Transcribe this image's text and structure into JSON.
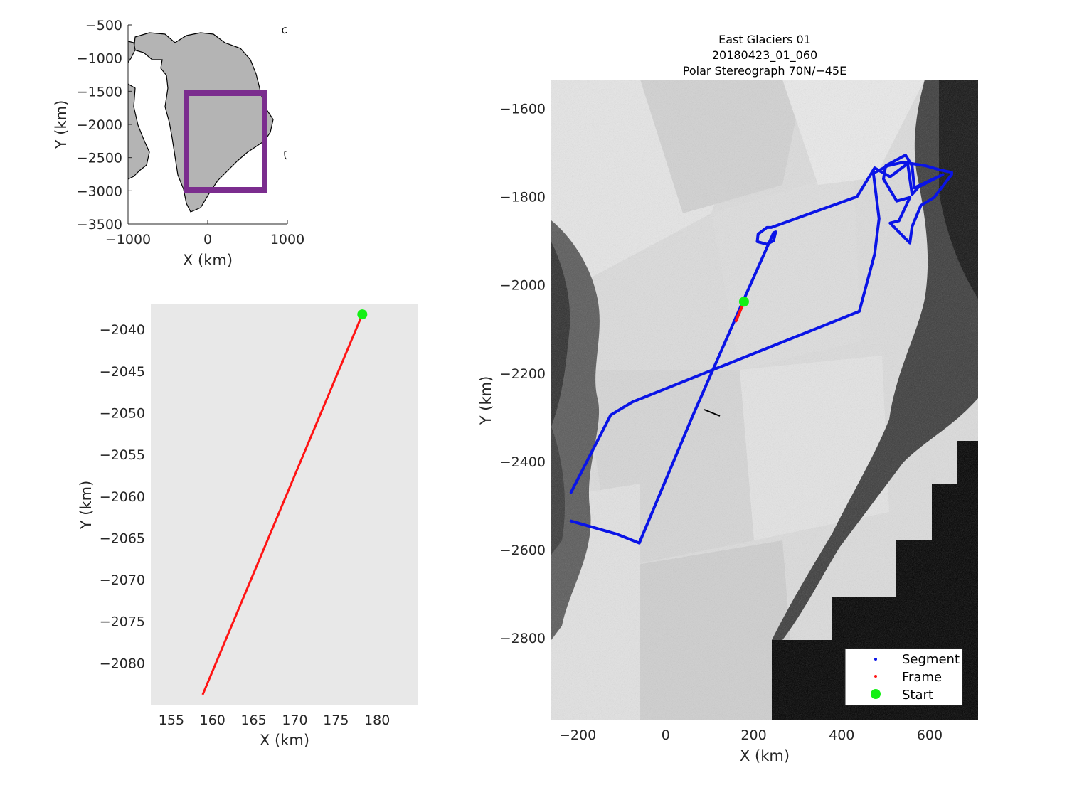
{
  "colors": {
    "segment": "#0a14e6",
    "frame": "#ff1414",
    "start": "#14f014",
    "box": "#7b2d8e",
    "land": "#b4b4b4"
  },
  "overview": {
    "xlabel": "X (km)",
    "ylabel": "Y (km)",
    "xticks": [
      "−1000",
      "0",
      "1000"
    ],
    "yticks": [
      "−500",
      "−1000",
      "−1500",
      "−2000",
      "−2500",
      "−3000",
      "−3500"
    ]
  },
  "zoom": {
    "xlabel": "X (km)",
    "ylabel": "Y (km)",
    "xticks": [
      "155",
      "160",
      "165",
      "170",
      "175",
      "180"
    ],
    "yticks": [
      "−2040",
      "−2045",
      "−2050",
      "−2055",
      "−2060",
      "−2065",
      "−2070",
      "−2075",
      "−2080"
    ]
  },
  "main": {
    "title": [
      "East Glaciers 01",
      "20180423_01_060",
      "Polar Stereograph 70N/−45E"
    ],
    "xlabel": "X (km)",
    "ylabel": "Y (km)",
    "xticks": [
      "−200",
      "0",
      "200",
      "400",
      "600"
    ],
    "yticks": [
      "−1600",
      "−1800",
      "−2000",
      "−2200",
      "−2400",
      "−2600",
      "−2800"
    ],
    "legend": [
      "Segment",
      "Frame",
      "Start"
    ],
    "legend_placement": "bottom-right"
  },
  "chart_data": [
    {
      "type": "scatter",
      "name": "overview-map",
      "xlim": [
        -1000,
        1000
      ],
      "ylim": [
        -3500,
        -500
      ],
      "extent_box": {
        "x": [
          -260,
          720
        ],
        "y": [
          -3000,
          -1540
        ]
      }
    },
    {
      "type": "line",
      "name": "frame-zoom",
      "xlim": [
        152.5,
        185
      ],
      "ylim": [
        -2085,
        -2037
      ],
      "series": [
        {
          "name": "Frame",
          "x": [
            158.8,
            178.2
          ],
          "y": [
            -2083.8,
            -2038.2
          ]
        },
        {
          "name": "Start",
          "x": [
            178.2
          ],
          "y": [
            -2038.2
          ]
        }
      ]
    },
    {
      "type": "line",
      "name": "segment-map",
      "xlim": [
        -260,
        710
      ],
      "ylim": [
        -2985,
        -1535
      ],
      "series": [
        {
          "name": "Segment",
          "x": [
            -215,
            -125,
            -75,
            440,
            475,
            485,
            472,
            505,
            540,
            590,
            625,
            650,
            650,
            610,
            580,
            560,
            555,
            510,
            530,
            555,
            525,
            495,
            500,
            545,
            560,
            565,
            630,
            610,
            575,
            560,
            550,
            510,
            475,
            435,
            240,
            230,
            210,
            208,
            230,
            245,
            250,
            245,
            170,
            60,
            -60,
            -110,
            -215
          ],
          "y": [
            -2470,
            -2295,
            -2265,
            -2060,
            -1930,
            -1850,
            -1747,
            -1730,
            -1722,
            -1730,
            -1740,
            -1745,
            -1750,
            -1802,
            -1820,
            -1868,
            -1905,
            -1860,
            -1855,
            -1802,
            -1810,
            -1760,
            -1730,
            -1706,
            -1730,
            -1780,
            -1750,
            -1760,
            -1778,
            -1795,
            -1725,
            -1755,
            -1735,
            -1800,
            -1870,
            -1870,
            -1885,
            -1902,
            -1908,
            -1900,
            -1880,
            -1882,
            -2050,
            -2300,
            -2585,
            -2565,
            -2535
          ]
        },
        {
          "name": "Frame",
          "x": [
            158.8,
            178.2
          ],
          "y": [
            -2083.8,
            -2038.2
          ]
        },
        {
          "name": "Start",
          "x": [
            178
          ],
          "y": [
            -2038
          ]
        }
      ]
    }
  ]
}
